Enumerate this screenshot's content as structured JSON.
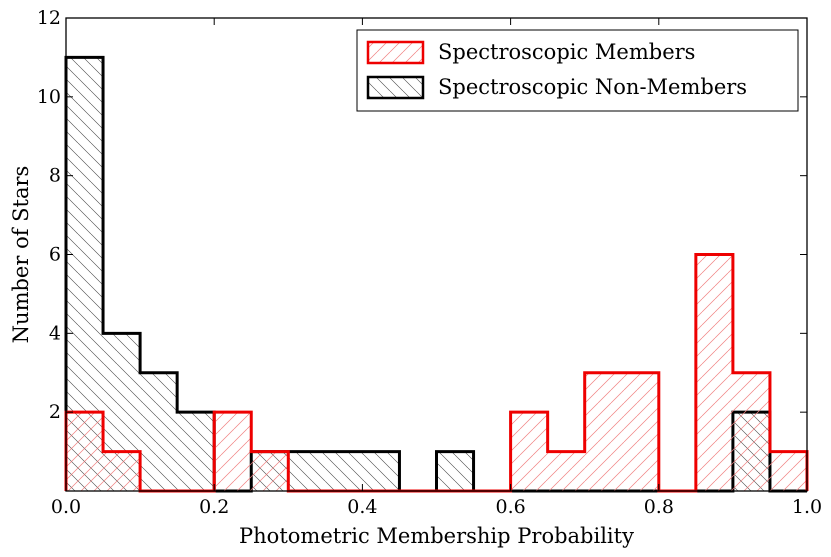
{
  "chart_data": {
    "type": "bar",
    "title": "",
    "xlabel": "Photometric Membership Probability",
    "ylabel": "Number of Stars",
    "xlim": [
      0,
      1
    ],
    "ylim": [
      0,
      12
    ],
    "bin_edges": [
      0.0,
      0.05,
      0.1,
      0.15,
      0.2,
      0.25,
      0.3,
      0.35,
      0.4,
      0.45,
      0.5,
      0.55,
      0.6,
      0.65,
      0.7,
      0.75,
      0.8,
      0.85,
      0.9,
      0.95,
      1.0
    ],
    "x_ticks": [
      {
        "value": 0.0,
        "label": "0.0"
      },
      {
        "value": 0.2,
        "label": "0.2"
      },
      {
        "value": 0.4,
        "label": "0.4"
      },
      {
        "value": 0.6,
        "label": "0.6"
      },
      {
        "value": 0.8,
        "label": "0.8"
      },
      {
        "value": 1.0,
        "label": "1.0"
      }
    ],
    "y_ticks": [
      {
        "value": 2,
        "label": "2"
      },
      {
        "value": 4,
        "label": "4"
      },
      {
        "value": 6,
        "label": "6"
      },
      {
        "value": 8,
        "label": "8"
      },
      {
        "value": 10,
        "label": "10"
      },
      {
        "value": 12,
        "label": "12"
      }
    ],
    "legend_position": "top-right",
    "series": [
      {
        "name": "Spectroscopic Non-Members",
        "color": "#000000",
        "hatch": "backslash",
        "values": [
          11,
          4,
          3,
          2,
          0,
          1,
          1,
          1,
          1,
          0,
          1,
          0,
          0,
          0,
          0,
          0,
          0,
          0,
          2,
          0
        ]
      },
      {
        "name": "Spectroscopic Members",
        "color": "#ee0000",
        "hatch": "slash",
        "values": [
          2,
          1,
          0,
          0,
          2,
          1,
          0,
          0,
          0,
          0,
          0,
          0,
          2,
          1,
          3,
          3,
          0,
          6,
          3,
          1
        ]
      }
    ],
    "grid": false
  }
}
